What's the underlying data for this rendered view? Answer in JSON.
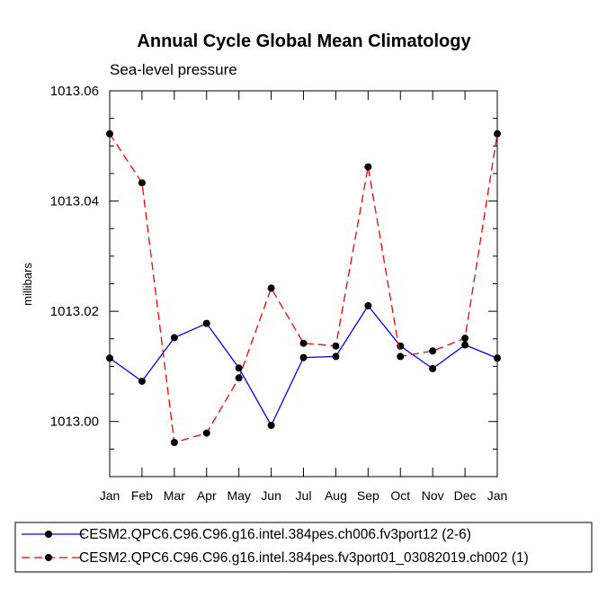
{
  "chart_data": {
    "type": "line",
    "title": "Annual Cycle Global Mean Climatology",
    "subtitle": "Sea-level pressure",
    "xlabel": "",
    "ylabel": "millibars",
    "categories": [
      "Jan",
      "Feb",
      "Mar",
      "Apr",
      "May",
      "Jun",
      "Jul",
      "Aug",
      "Sep",
      "Oct",
      "Nov",
      "Dec",
      "Jan"
    ],
    "ylim": [
      1012.99,
      1013.06
    ],
    "yticks": [
      1013.0,
      1013.02,
      1013.04,
      1013.06
    ],
    "ytick_labels": [
      "1013.00",
      "1013.02",
      "1013.04",
      "1013.06"
    ],
    "grid": false,
    "legend_position": "bottom",
    "series": [
      {
        "name": "CESM2.QPC6.C96.C96.g16.intel.384pes.ch006.fv3port12 (2-6)",
        "color": "#0000ff",
        "dash": "solid",
        "values": [
          1013.0115,
          1013.0073,
          1013.0152,
          1013.0178,
          1013.0097,
          1012.9993,
          1013.0116,
          1013.0118,
          1013.021,
          1013.0137,
          1013.0096,
          1013.0139,
          1013.0115
        ]
      },
      {
        "name": "CESM2.QPC6.C96.C96.g16.intel.384pes.fv3port01_03082019.ch002 (1)",
        "color": "#ff0000",
        "dash": "dashed",
        "values": [
          1013.0522,
          1013.0433,
          1012.9962,
          1012.9979,
          1013.0079,
          1013.0242,
          1013.0142,
          1013.0137,
          1013.0462,
          1013.0118,
          1013.0128,
          1013.0151,
          1013.0522
        ]
      }
    ]
  }
}
